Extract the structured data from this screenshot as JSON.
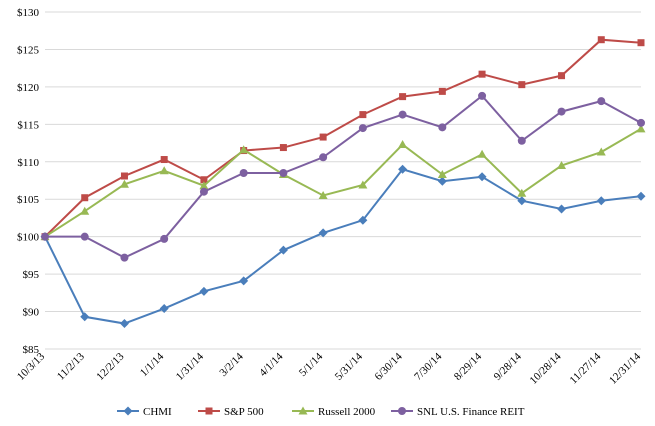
{
  "chart_data": {
    "type": "line",
    "title": "",
    "xlabel": "",
    "ylabel": "",
    "ylim": [
      85,
      130
    ],
    "y_ticks": [
      "$85",
      "$90",
      "$95",
      "$100",
      "$105",
      "$110",
      "$115",
      "$120",
      "$125",
      "$130"
    ],
    "y_tick_values": [
      85,
      90,
      95,
      100,
      105,
      110,
      115,
      120,
      125,
      130
    ],
    "grid": true,
    "legend_position": "bottom",
    "categories": [
      "10/3/13",
      "11/2/13",
      "12/2/13",
      "1/1/14",
      "1/31/14",
      "3/2/14",
      "4/1/14",
      "5/1/14",
      "5/31/14",
      "6/30/14",
      "7/30/14",
      "8/29/14",
      "9/28/14",
      "10/28/14",
      "11/27/14",
      "12/31/14"
    ],
    "series": [
      {
        "name": "CHMI",
        "color": "#4a7ebb",
        "marker": "diamond",
        "values": [
          100,
          89.3,
          88.4,
          90.4,
          92.7,
          94.1,
          98.2,
          100.5,
          102.2,
          109,
          107.4,
          108,
          104.8,
          103.7,
          104.8,
          105.4
        ]
      },
      {
        "name": "S&P 500",
        "color": "#be4b48",
        "marker": "square",
        "values": [
          100,
          105.2,
          108.1,
          110.3,
          107.6,
          111.5,
          111.9,
          113.3,
          116.3,
          118.7,
          119.4,
          121.7,
          120.3,
          121.5,
          126.3,
          125.9
        ]
      },
      {
        "name": "Russell 2000",
        "color": "#98b954",
        "marker": "triangle",
        "values": [
          100,
          103.4,
          107,
          108.8,
          106.8,
          111.6,
          108.3,
          105.5,
          106.9,
          112.3,
          108.3,
          111,
          105.8,
          109.5,
          111.3,
          114.4
        ]
      },
      {
        "name": "SNL U.S. Finance REIT",
        "color": "#7d60a0",
        "marker": "circle",
        "values": [
          100,
          100,
          97.2,
          99.7,
          106,
          108.5,
          108.5,
          110.6,
          114.5,
          116.3,
          114.6,
          118.8,
          112.8,
          116.7,
          118.1,
          115.2
        ]
      }
    ]
  }
}
